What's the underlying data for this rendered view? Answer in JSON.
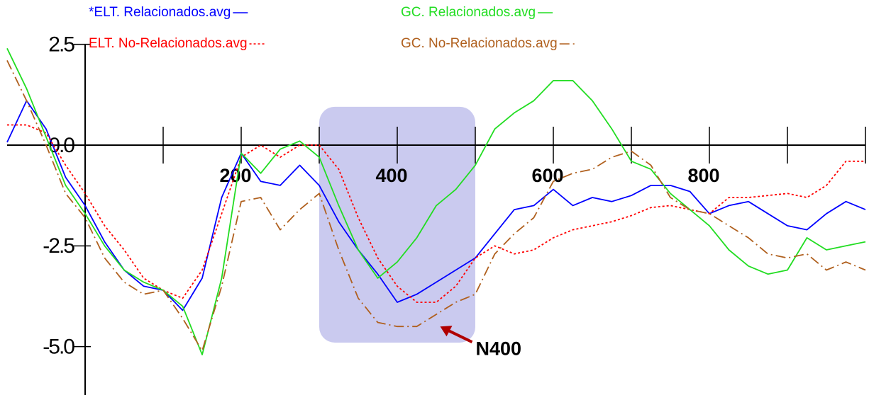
{
  "chart_data": {
    "type": "line",
    "x": [
      -100,
      -75,
      -50,
      -25,
      0,
      25,
      50,
      75,
      100,
      125,
      150,
      175,
      200,
      225,
      250,
      275,
      300,
      325,
      350,
      375,
      400,
      425,
      450,
      475,
      500,
      525,
      550,
      575,
      600,
      625,
      650,
      675,
      700,
      725,
      750,
      775,
      800,
      825,
      850,
      875,
      900,
      925,
      950,
      975,
      1000
    ],
    "series": [
      {
        "name": "*ELT. Relacionados.avg",
        "color": "#0000ff",
        "dash": "solid",
        "values": [
          0.07,
          1.1,
          0.4,
          -0.8,
          -1.5,
          -2.4,
          -3.1,
          -3.5,
          -3.6,
          -4.1,
          -3.3,
          -1.3,
          -0.2,
          -0.9,
          -1.0,
          -0.5,
          -1.0,
          -1.9,
          -2.6,
          -3.2,
          -3.9,
          -3.7,
          -3.4,
          -3.1,
          -2.8,
          -2.2,
          -1.6,
          -1.5,
          -1.1,
          -1.5,
          -1.3,
          -1.4,
          -1.25,
          -1.0,
          -1.0,
          -1.15,
          -1.7,
          -1.5,
          -1.4,
          -1.7,
          -2.0,
          -2.1,
          -1.7,
          -1.4,
          -1.6
        ]
      },
      {
        "name": "ELT. No-Relacionados.avg",
        "color": "#ff0000",
        "dash": "dotted",
        "values": [
          0.5,
          0.5,
          0.3,
          -0.5,
          -1.2,
          -2.0,
          -2.6,
          -3.3,
          -3.6,
          -3.8,
          -3.1,
          -1.7,
          -0.3,
          0.0,
          -0.3,
          0.0,
          0.0,
          -0.6,
          -1.8,
          -2.8,
          -3.5,
          -3.9,
          -3.9,
          -3.5,
          -2.8,
          -2.5,
          -2.7,
          -2.6,
          -2.3,
          -2.1,
          -2.0,
          -1.9,
          -1.75,
          -1.55,
          -1.5,
          -1.6,
          -1.7,
          -1.3,
          -1.3,
          -1.25,
          -1.2,
          -1.3,
          -1.0,
          -0.4,
          -0.4
        ]
      },
      {
        "name": "GC. Relacionados.avg",
        "color": "#22dd22",
        "dash": "solid",
        "values": [
          2.4,
          1.4,
          0.2,
          -1.0,
          -1.7,
          -2.5,
          -3.1,
          -3.4,
          -3.6,
          -4.0,
          -5.2,
          -3.3,
          -0.2,
          -0.7,
          -0.1,
          0.1,
          -0.3,
          -1.5,
          -2.6,
          -3.3,
          -2.9,
          -2.3,
          -1.5,
          -1.1,
          -0.5,
          0.4,
          0.8,
          1.1,
          1.6,
          1.6,
          1.1,
          0.4,
          -0.4,
          -0.6,
          -1.2,
          -1.6,
          -2.0,
          -2.6,
          -3.0,
          -3.2,
          -3.1,
          -2.3,
          -2.6,
          -2.5,
          -2.4
        ]
      },
      {
        "name": "GC. No-Relacionados.avg",
        "color": "#b0601e",
        "dash": "dashdot",
        "values": [
          2.1,
          1.1,
          0.0,
          -1.2,
          -1.8,
          -2.8,
          -3.4,
          -3.7,
          -3.6,
          -4.3,
          -5.1,
          -3.5,
          -1.4,
          -1.3,
          -2.1,
          -1.6,
          -1.2,
          -2.6,
          -3.8,
          -4.4,
          -4.5,
          -4.5,
          -4.2,
          -3.9,
          -3.7,
          -2.7,
          -2.2,
          -1.8,
          -0.9,
          -0.7,
          -0.6,
          -0.3,
          -0.15,
          -0.5,
          -1.3,
          -1.6,
          -1.7,
          -2.0,
          -2.3,
          -2.7,
          -2.8,
          -2.7,
          -3.1,
          -2.9,
          -3.1
        ]
      }
    ],
    "xlim": [
      -100,
      1000
    ],
    "ylim": [
      -6.2,
      3.6
    ],
    "xticks": [
      200,
      400,
      600,
      800
    ],
    "x_minor_ticks": [
      0,
      100,
      200,
      300,
      400,
      500,
      600,
      700,
      800,
      900,
      1000
    ],
    "yticks": [
      {
        "value": 2.5,
        "label": "2.5"
      },
      {
        "value": 0,
        "label": "0.0"
      },
      -2.5,
      {
        "value": -5,
        "label": "-5.0"
      }
    ],
    "highlight": {
      "x": [
        300,
        500
      ],
      "y": [
        0.95,
        -4.9
      ],
      "color": "#b8b8ea"
    },
    "annotation": {
      "text": "N400",
      "x": 455,
      "y": -4.5,
      "color": "#b00000"
    }
  }
}
